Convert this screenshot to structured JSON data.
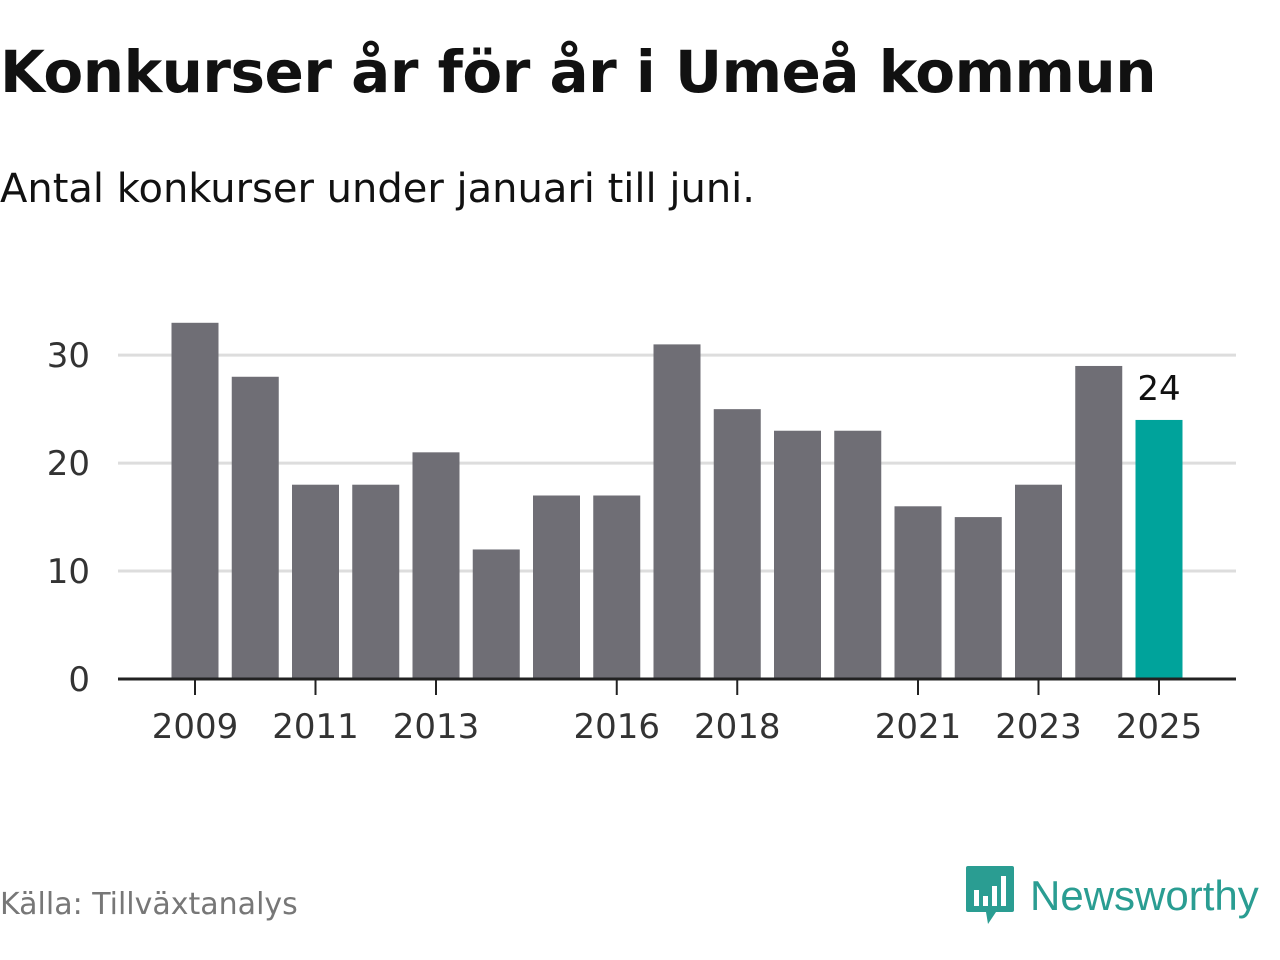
{
  "header": {
    "title": "Konkurser år för år i Umeå kommun",
    "subtitle": "Antal konkurser under januari till juni."
  },
  "footer": {
    "source": "Källa: Tillväxtanalys",
    "brand": "Newsworthy"
  },
  "colors": {
    "bar": "#6f6e75",
    "highlight": "#00a39b",
    "grid": "#dddddd",
    "axis": "#222222",
    "brand": "#2a9d92"
  },
  "chart_data": {
    "type": "bar",
    "categories": [
      "2009",
      "2010",
      "2011",
      "2012",
      "2013",
      "2014",
      "2015",
      "2016",
      "2017",
      "2018",
      "2019",
      "2020",
      "2021",
      "2022",
      "2023",
      "2024",
      "2025"
    ],
    "values": [
      33,
      28,
      18,
      18,
      21,
      12,
      17,
      17,
      31,
      25,
      23,
      23,
      16,
      15,
      18,
      29,
      24
    ],
    "x_tick_labels": [
      "2009",
      "2011",
      "2013",
      "2016",
      "2018",
      "2021",
      "2023",
      "2025"
    ],
    "y_ticks": [
      0,
      10,
      20,
      30
    ],
    "ylim": [
      0,
      34
    ],
    "highlight_category": "2025",
    "data_labels": [
      {
        "category": "2025",
        "text": "24"
      }
    ],
    "grid": true,
    "title": "Konkurser år för år i Umeå kommun",
    "subtitle": "Antal konkurser under januari till juni.",
    "xlabel": "",
    "ylabel": ""
  }
}
